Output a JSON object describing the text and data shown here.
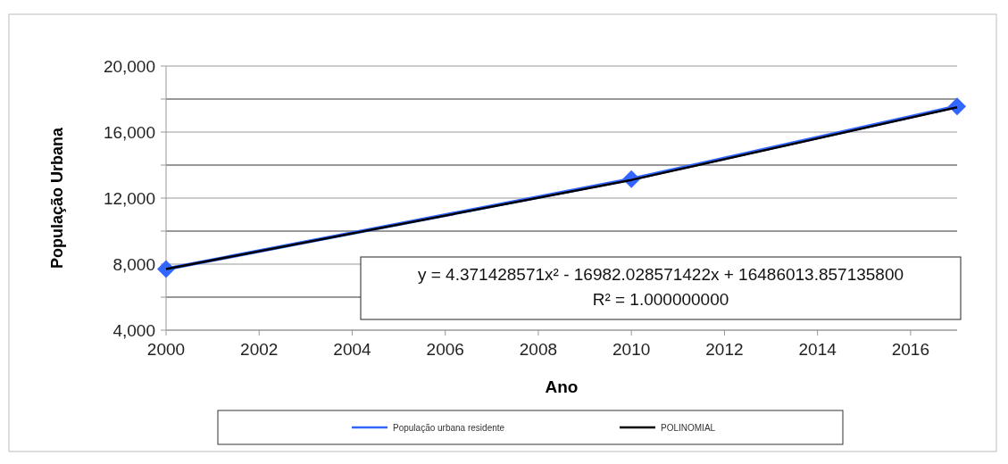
{
  "chart_data": {
    "type": "line",
    "xlabel": "Ano",
    "ylabel": "População Urbana",
    "x": [
      2000,
      2010,
      2017
    ],
    "series": [
      {
        "name": "População urbana residente",
        "color": "#3366ff",
        "values": [
          7700,
          13150,
          17550
        ],
        "marker": "diamond"
      },
      {
        "name": "POLINOMIAL",
        "color": "#000000",
        "values": [
          7700,
          13100,
          17500
        ],
        "marker": "none"
      }
    ],
    "xlim": [
      2000,
      2017
    ],
    "xticks": [
      2000,
      2002,
      2004,
      2006,
      2008,
      2010,
      2012,
      2014,
      2016
    ],
    "ylim": [
      4000,
      20000
    ],
    "yticks": [
      {
        "value": 4000,
        "label": "4,000"
      },
      {
        "value": 6000,
        "label": null
      },
      {
        "value": 8000,
        "label": "8,000"
      },
      {
        "value": 10000,
        "label": null
      },
      {
        "value": 12000,
        "label": "12,000"
      },
      {
        "value": 14000,
        "label": null
      },
      {
        "value": 16000,
        "label": "16,000"
      },
      {
        "value": 18000,
        "label": null
      },
      {
        "value": 20000,
        "label": "20,000"
      }
    ],
    "grid": "y",
    "legend": "bottom",
    "annotations": [
      "y = 4.371428571x² - 16982.028571422x + 16486013.857135800\nR² = 1.000000000"
    ]
  }
}
